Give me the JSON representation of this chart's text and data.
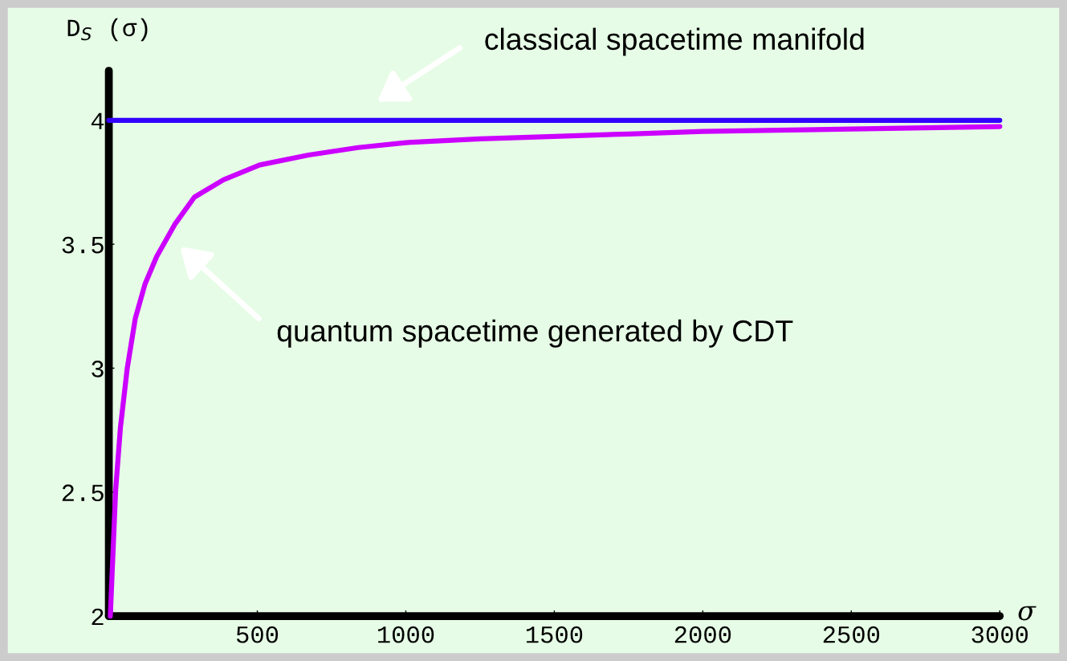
{
  "chart_data": {
    "type": "line",
    "xlabel": "σ",
    "ylabel": "D$_{S}$ (σ)",
    "xlim": [
      0,
      3000
    ],
    "ylim": [
      2,
      4.2
    ],
    "xticks": [
      500,
      1000,
      1500,
      2000,
      2500,
      3000
    ],
    "yticks": [
      2,
      2.5,
      3,
      3.5,
      4
    ],
    "grid": false,
    "legend": false,
    "marker": "none",
    "line_style": "solid",
    "series": [
      {
        "color": "#3300ff",
        "x": [
          0,
          3000
        ],
        "values": [
          4,
          4
        ]
      },
      {
        "color": "#cc00ff",
        "x": [
          5,
          23,
          39,
          62,
          89,
          122,
          161,
          222,
          288,
          386,
          508,
          673,
          839,
          1000,
          1250,
          1500,
          1750,
          2000,
          2250,
          2500,
          2750,
          3000
        ],
        "values": [
          2.0,
          2.51,
          2.76,
          3.0,
          3.2,
          3.34,
          3.45,
          3.58,
          3.69,
          3.76,
          3.82,
          3.86,
          3.89,
          3.91,
          3.925,
          3.935,
          3.945,
          3.955,
          3.96,
          3.965,
          3.97,
          3.975
        ]
      }
    ],
    "annotations": [
      "classical spacetime manifold",
      "quantum spacetime generated by CDT"
    ]
  }
}
